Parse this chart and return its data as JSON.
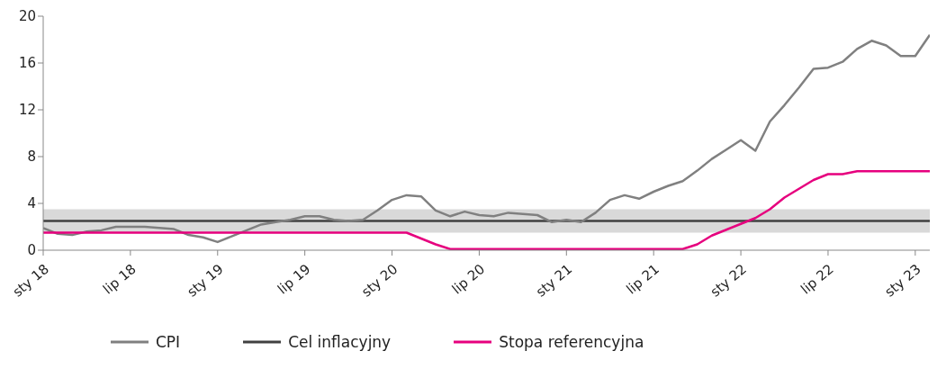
{
  "chart_data": {
    "type": "line",
    "x": [
      "2018-01",
      "2018-02",
      "2018-03",
      "2018-04",
      "2018-05",
      "2018-06",
      "2018-07",
      "2018-08",
      "2018-09",
      "2018-10",
      "2018-11",
      "2018-12",
      "2019-01",
      "2019-02",
      "2019-03",
      "2019-04",
      "2019-05",
      "2019-06",
      "2019-07",
      "2019-08",
      "2019-09",
      "2019-10",
      "2019-11",
      "2019-12",
      "2020-01",
      "2020-02",
      "2020-03",
      "2020-04",
      "2020-05",
      "2020-06",
      "2020-07",
      "2020-08",
      "2020-09",
      "2020-10",
      "2020-11",
      "2020-12",
      "2021-01",
      "2021-02",
      "2021-03",
      "2021-04",
      "2021-05",
      "2021-06",
      "2021-07",
      "2021-08",
      "2021-09",
      "2021-10",
      "2021-11",
      "2021-12",
      "2022-01",
      "2022-02",
      "2022-03",
      "2022-04",
      "2022-05",
      "2022-06",
      "2022-07",
      "2022-08",
      "2022-09",
      "2022-10",
      "2022-11",
      "2022-12",
      "2023-01",
      "2023-02"
    ],
    "series": [
      {
        "name": "CPI",
        "color": "#808080",
        "values": [
          1.9,
          1.4,
          1.3,
          1.6,
          1.7,
          2.0,
          2.0,
          2.0,
          1.9,
          1.8,
          1.3,
          1.1,
          0.7,
          1.2,
          1.7,
          2.2,
          2.4,
          2.6,
          2.9,
          2.9,
          2.6,
          2.5,
          2.6,
          3.4,
          4.3,
          4.7,
          4.6,
          3.4,
          2.9,
          3.3,
          3.0,
          2.9,
          3.2,
          3.1,
          3.0,
          2.4,
          2.6,
          2.4,
          3.2,
          4.3,
          4.7,
          4.4,
          5.0,
          5.5,
          5.9,
          6.8,
          7.8,
          8.6,
          9.4,
          8.5,
          11.0,
          12.4,
          13.9,
          15.5,
          15.6,
          16.1,
          17.2,
          17.9,
          17.5,
          16.6,
          16.6,
          18.4
        ]
      },
      {
        "name": "Stopa referencyjna",
        "color": "#e6007e",
        "values": [
          1.5,
          1.5,
          1.5,
          1.5,
          1.5,
          1.5,
          1.5,
          1.5,
          1.5,
          1.5,
          1.5,
          1.5,
          1.5,
          1.5,
          1.5,
          1.5,
          1.5,
          1.5,
          1.5,
          1.5,
          1.5,
          1.5,
          1.5,
          1.5,
          1.5,
          1.5,
          1.0,
          0.5,
          0.1,
          0.1,
          0.1,
          0.1,
          0.1,
          0.1,
          0.1,
          0.1,
          0.1,
          0.1,
          0.1,
          0.1,
          0.1,
          0.1,
          0.1,
          0.1,
          0.1,
          0.5,
          1.25,
          1.75,
          2.25,
          2.75,
          3.5,
          4.5,
          5.25,
          6.0,
          6.5,
          6.5,
          6.75,
          6.75,
          6.75,
          6.75,
          6.75,
          6.75
        ]
      }
    ],
    "ref_lines": [
      {
        "axis": "y",
        "value": 2.5,
        "label": "Cel inflacyjny",
        "color": "#404040"
      }
    ],
    "bands": [
      {
        "axis": "y",
        "from": 1.5,
        "to": 3.5,
        "color": "#d9d9d9"
      }
    ],
    "xlim": [
      "2018-01",
      "2023-02"
    ],
    "xticks": [
      {
        "value": "2018-01",
        "label": "sty 18"
      },
      {
        "value": "2018-07",
        "label": "lip 18"
      },
      {
        "value": "2019-01",
        "label": "sty 19"
      },
      {
        "value": "2019-07",
        "label": "lip 19"
      },
      {
        "value": "2020-01",
        "label": "sty 20"
      },
      {
        "value": "2020-07",
        "label": "lip 20"
      },
      {
        "value": "2021-01",
        "label": "sty 21"
      },
      {
        "value": "2021-07",
        "label": "lip 21"
      },
      {
        "value": "2022-01",
        "label": "sty 22"
      },
      {
        "value": "2022-07",
        "label": "lip 22"
      },
      {
        "value": "2023-01",
        "label": "sty 23"
      }
    ],
    "ylim": [
      0,
      20
    ],
    "yticks": [
      0,
      4,
      8,
      12,
      16,
      20
    ],
    "legend": "bottom",
    "marker": "none",
    "line_style": "solid"
  }
}
